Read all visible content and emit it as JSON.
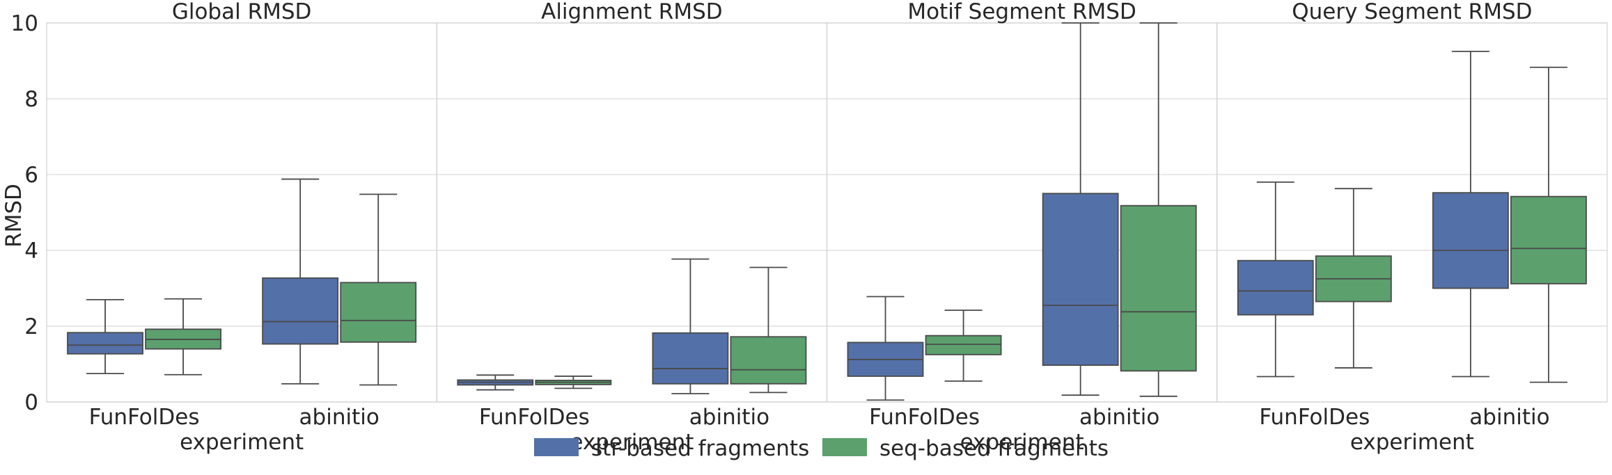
{
  "chart_data": {
    "type": "box",
    "ylabel": "RMSD",
    "xlabel": "experiment",
    "ylim": [
      0,
      10
    ],
    "yticks": [
      0,
      2,
      4,
      6,
      8,
      10
    ],
    "grid": true,
    "legend_position": "bottom-center",
    "categories": [
      "FunFolDes",
      "abinitio"
    ],
    "series": [
      {
        "name": "str-based fragments",
        "color": "#5470a8"
      },
      {
        "name": "seq-based fragments",
        "color": "#5ba06d"
      }
    ],
    "facets": [
      {
        "title": "Global RMSD",
        "show_xlabel": true,
        "boxes": [
          [
            {
              "whislo": 0.75,
              "q1": 1.27,
              "med": 1.5,
              "q3": 1.83,
              "whishi": 2.7
            },
            {
              "whislo": 0.72,
              "q1": 1.4,
              "med": 1.65,
              "q3": 1.92,
              "whishi": 2.72
            }
          ],
          [
            {
              "whislo": 0.48,
              "q1": 1.53,
              "med": 2.12,
              "q3": 3.27,
              "whishi": 5.88
            },
            {
              "whislo": 0.45,
              "q1": 1.58,
              "med": 2.15,
              "q3": 3.15,
              "whishi": 5.48
            }
          ]
        ]
      },
      {
        "title": "Alignment RMSD",
        "show_xlabel": true,
        "boxes": [
          [
            {
              "whislo": 0.32,
              "q1": 0.45,
              "med": 0.52,
              "q3": 0.58,
              "whishi": 0.71
            },
            {
              "whislo": 0.36,
              "q1": 0.46,
              "med": 0.52,
              "q3": 0.57,
              "whishi": 0.68
            }
          ],
          [
            {
              "whislo": 0.22,
              "q1": 0.48,
              "med": 0.88,
              "q3": 1.82,
              "whishi": 3.77
            },
            {
              "whislo": 0.25,
              "q1": 0.48,
              "med": 0.85,
              "q3": 1.72,
              "whishi": 3.55
            }
          ]
        ]
      },
      {
        "title": "Motif Segment RMSD",
        "show_xlabel": true,
        "boxes": [
          [
            {
              "whislo": 0.05,
              "q1": 0.68,
              "med": 1.12,
              "q3": 1.57,
              "whishi": 2.78
            },
            {
              "whislo": 0.55,
              "q1": 1.25,
              "med": 1.52,
              "q3": 1.75,
              "whishi": 2.42
            }
          ],
          [
            {
              "whislo": 0.18,
              "q1": 0.97,
              "med": 2.55,
              "q3": 5.5,
              "whishi": 10.0
            },
            {
              "whislo": 0.15,
              "q1": 0.82,
              "med": 2.38,
              "q3": 5.18,
              "whishi": 10.0
            }
          ]
        ]
      },
      {
        "title": "Query Segment RMSD",
        "show_xlabel": true,
        "boxes": [
          [
            {
              "whislo": 0.67,
              "q1": 2.3,
              "med": 2.93,
              "q3": 3.73,
              "whishi": 5.8
            },
            {
              "whislo": 0.9,
              "q1": 2.65,
              "med": 3.25,
              "q3": 3.85,
              "whishi": 5.63
            }
          ],
          [
            {
              "whislo": 0.67,
              "q1": 3.0,
              "med": 4.0,
              "q3": 5.52,
              "whishi": 9.25
            },
            {
              "whislo": 0.52,
              "q1": 3.12,
              "med": 4.05,
              "q3": 5.42,
              "whishi": 8.83
            }
          ]
        ]
      }
    ]
  }
}
